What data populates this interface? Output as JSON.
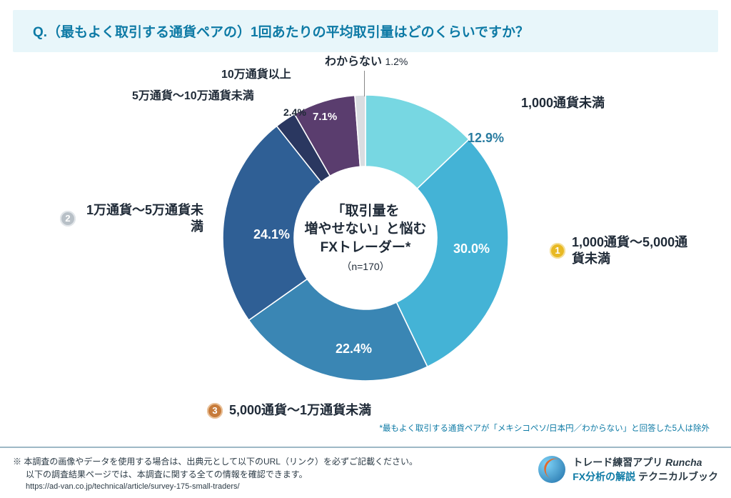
{
  "question": "Q.（最もよく取引する通貨ペアの）1回あたりの平均取引量はどのくらいですか？",
  "chart": {
    "type": "donut",
    "inner_radius_ratio": 0.5,
    "background_color": "#ffffff",
    "center_text_line1": "「取引量を",
    "center_text_line2": "増やせない」と悩む",
    "center_text_line3": "FXトレーダー*",
    "center_sub": "（n=170）",
    "segments": [
      {
        "label": "1,000通貨未満",
        "value": 12.9,
        "pct": "12.9%",
        "color": "#77d7e2"
      },
      {
        "label": "1,000通貨〜5,000通貨未満",
        "value": 30.0,
        "pct": "30.0%",
        "color": "#44b3d6",
        "rank": 1
      },
      {
        "label": "5,000通貨〜1万通貨未満",
        "value": 22.4,
        "pct": "22.4%",
        "color": "#3a86b4",
        "rank": 3
      },
      {
        "label": "1万通貨〜5万通貨未満",
        "value": 24.1,
        "pct": "24.1%",
        "color": "#2f5f95",
        "rank": 2
      },
      {
        "label": "5万通貨〜10万通貨未満",
        "value": 2.4,
        "pct": "2.4%",
        "color": "#2a3760"
      },
      {
        "label": "10万通貨以上",
        "value": 7.1,
        "pct": "7.1%",
        "color": "#5a3d6e"
      },
      {
        "label": "わからない",
        "value": 1.2,
        "pct": "1.2%",
        "color": "#d9dde1"
      }
    ],
    "label_fontsize": 18,
    "pct_fontsize": 18,
    "center_fontsize": 19
  },
  "footnote_right": "*最もよく取引する通貨ペアが「メキシコペソ/日本円／わからない」と回答した5人は除外",
  "bottom": {
    "note1": "※ 本調査の画像やデータを使用する場合は、出典元として以下のURL（リンク）を必ずご記載ください。",
    "note2": "以下の調査結果ページでは、本調査に関する全ての情報を確認できます。",
    "url": "https://ad-van.co.jp/technical/article/survey-175-small-traders/",
    "brand_line1_a": "トレード練習アプリ",
    "brand_line1_b": "Runcha",
    "brand_line2_a": "FX分析の解説",
    "brand_line2_b": "テクニカルブック"
  },
  "colors": {
    "question_bg": "#e8f6fa",
    "question_fg": "#0d7aa5",
    "text_dark": "#1f2a37"
  }
}
